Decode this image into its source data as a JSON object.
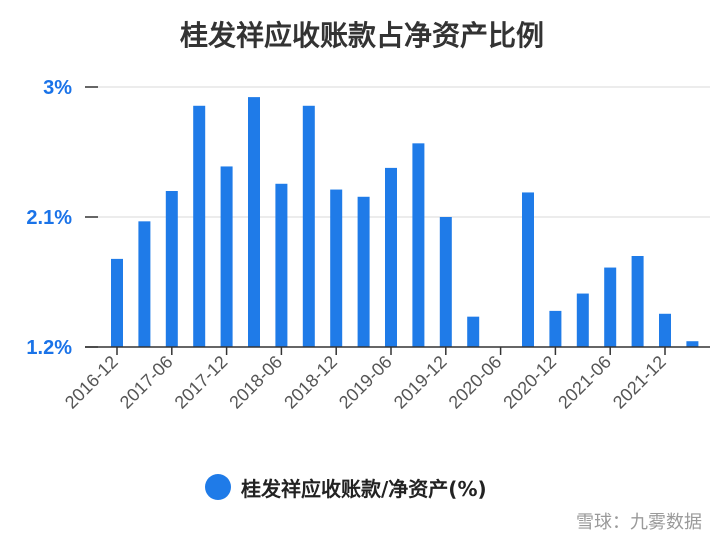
{
  "chart_data": {
    "type": "bar",
    "title": "桂发祥应收账款占净资产比例",
    "xlabel": "",
    "ylabel": "",
    "ylim": [
      1.2,
      3.0
    ],
    "ytick_labels": [
      "3%",
      "2.1%",
      "1.2%"
    ],
    "ytick_values": [
      3.0,
      2.1,
      1.2
    ],
    "grid": true,
    "legend_position": "bottom",
    "categories": [
      "2016-12",
      "2017-03",
      "2017-06",
      "2017-09",
      "2017-12",
      "2018-03",
      "2018-06",
      "2018-09",
      "2018-12",
      "2019-03",
      "2019-06",
      "2019-09",
      "2019-12",
      "2020-03",
      "2020-06",
      "2020-09",
      "2020-12",
      "2021-03",
      "2021-06",
      "2021-09",
      "2021-12",
      "2022-03"
    ],
    "xtick_labels": [
      "2016-12",
      "2017-06",
      "2017-12",
      "2018-06",
      "2018-12",
      "2019-06",
      "2019-12",
      "2020-06",
      "2020-12",
      "2021-06",
      "2021-12"
    ],
    "series": [
      {
        "name": "桂发祥应收账款/净资产(%)",
        "color": "#1f7be8",
        "values": [
          1.81,
          2.07,
          2.28,
          2.87,
          2.45,
          2.93,
          2.33,
          2.87,
          2.29,
          2.24,
          2.44,
          2.61,
          2.1,
          1.41,
          null,
          2.27,
          1.45,
          1.57,
          1.75,
          1.83,
          1.43,
          1.24
        ]
      }
    ]
  },
  "watermark": "雪球：九雾数据"
}
